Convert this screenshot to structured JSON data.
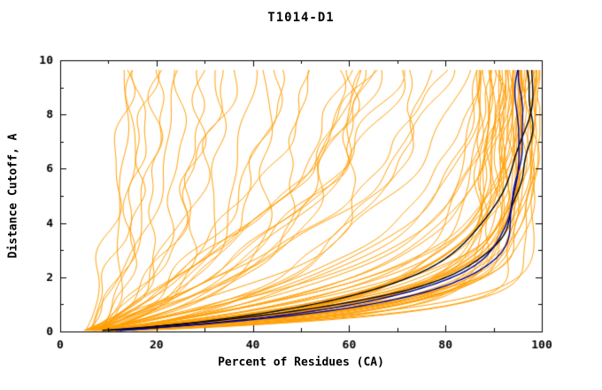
{
  "chart_data": {
    "type": "line",
    "title": "T1014-D1",
    "xlabel": "Percent of Residues (CA)",
    "ylabel": "Distance Cutoff, A",
    "xlim": [
      0,
      100
    ],
    "ylim": [
      0,
      10
    ],
    "x_ticks": [
      0,
      20,
      40,
      60,
      80,
      100
    ],
    "x_minor_step": 10,
    "y_ticks": [
      0,
      2,
      4,
      6,
      8,
      10
    ],
    "y_minor_step": 1,
    "grid": false,
    "legend": "none",
    "colors": {
      "background": "#FFFFFF",
      "axis": "#000000",
      "orange_models": "#FF9E00",
      "blue_highlight": "#00008B",
      "black_highlight": "#000000"
    },
    "curve_model": "x(y) = x0 + (asymptote - x0) * (1 - exp(-(y/tau)^p)) + wiggle; each curve spec is [asymptote_percent, tau, p, wiggle_amp]",
    "x_start_percent": 5,
    "y_draw_range": [
      0.04,
      9.66
    ],
    "orange_curves": [
      [
        86,
        1.45,
        0.95,
        1.2
      ],
      [
        87,
        0.7,
        1.1,
        0.8
      ],
      [
        87.5,
        1.15,
        0.8,
        0.4
      ],
      [
        88,
        0.55,
        0.95,
        1.2
      ],
      [
        88.5,
        1.3,
        1.1,
        0.8
      ],
      [
        89,
        0.85,
        0.8,
        0.4
      ],
      [
        89.5,
        1.45,
        1.1,
        0.8
      ],
      [
        90,
        1.0,
        0.95,
        0.4
      ],
      [
        90.5,
        0.55,
        0.8,
        1.2
      ],
      [
        91,
        1.15,
        1.1,
        0.8
      ],
      [
        91.5,
        0.7,
        0.95,
        0.4
      ],
      [
        92,
        1.3,
        0.8,
        1.2
      ],
      [
        92.5,
        0.85,
        1.1,
        0.8
      ],
      [
        93,
        1.45,
        0.95,
        0.4
      ],
      [
        93.5,
        1.0,
        0.8,
        1.2
      ],
      [
        94,
        0.55,
        1.1,
        0.8
      ],
      [
        94.5,
        1.15,
        0.95,
        0.4
      ],
      [
        95,
        0.7,
        0.8,
        1.2
      ],
      [
        95.5,
        1.3,
        1.1,
        0.4
      ],
      [
        96,
        0.85,
        0.95,
        0.8
      ],
      [
        96.5,
        1.45,
        0.8,
        0.4
      ],
      [
        97,
        1.0,
        1.1,
        1.2
      ],
      [
        97.5,
        0.55,
        0.95,
        0.8
      ],
      [
        98,
        1.15,
        0.8,
        0.4
      ],
      [
        98.5,
        0.7,
        1.1,
        0.8
      ],
      [
        99,
        1.3,
        0.95,
        0.4
      ],
      [
        99.3,
        0.85,
        0.8,
        0.8
      ],
      [
        98.8,
        1.6,
        1.0,
        0.5
      ],
      [
        97.8,
        1.8,
        0.9,
        0.6
      ],
      [
        96.8,
        2.0,
        1.0,
        0.5
      ],
      [
        95.8,
        2.2,
        0.9,
        0.7
      ],
      [
        94.8,
        1.9,
        1.05,
        0.5
      ],
      [
        93.8,
        2.4,
        0.95,
        0.8
      ],
      [
        92.8,
        2.1,
        1.0,
        0.6
      ],
      [
        91.8,
        2.6,
        0.9,
        0.9
      ],
      [
        90.8,
        2.3,
        1.05,
        0.6
      ],
      [
        89.8,
        2.8,
        0.95,
        0.9
      ],
      [
        88.8,
        2.5,
        1.0,
        0.7
      ],
      [
        96.2,
        1.2,
        1.0,
        0.5
      ],
      [
        95.2,
        0.9,
        1.0,
        0.6
      ],
      [
        94.2,
        1.4,
        0.9,
        0.5
      ],
      [
        93.2,
        1.1,
        1.05,
        0.7
      ],
      [
        92.2,
        0.8,
        0.95,
        0.5
      ],
      [
        97.2,
        1.35,
        0.9,
        0.6
      ],
      [
        98.3,
        0.95,
        1.05,
        0.5
      ],
      [
        99.0,
        1.05,
        0.9,
        0.6
      ],
      [
        95,
        5.5,
        1.0,
        1.5
      ],
      [
        92,
        6.5,
        0.9,
        1.8
      ],
      [
        88,
        4.5,
        1.1,
        1.5
      ],
      [
        85,
        7.0,
        1.0,
        2.0
      ],
      [
        90,
        8.0,
        0.95,
        1.5
      ],
      [
        80,
        5.0,
        1.05,
        1.8
      ],
      [
        75,
        6.0,
        0.9,
        1.5
      ],
      [
        97,
        9.0,
        1.0,
        1.2
      ],
      [
        70,
        4.0,
        1.1,
        2.0
      ],
      [
        84,
        3.2,
        0.8,
        1.5
      ],
      [
        78,
        2.6,
        0.85,
        1.8
      ],
      [
        93,
        3.8,
        0.9,
        1.4
      ],
      [
        65,
        3.0,
        1.0,
        1.8
      ],
      [
        72,
        7.5,
        0.95,
        1.5
      ],
      [
        13,
        0.8,
        1.0,
        1.0
      ],
      [
        15,
        1.5,
        0.9,
        1.2
      ],
      [
        17,
        2.5,
        1.0,
        1.5
      ],
      [
        20,
        1.0,
        1.1,
        1.2
      ],
      [
        22,
        3.5,
        0.9,
        1.5
      ],
      [
        25,
        1.8,
        1.0,
        1.2
      ],
      [
        28,
        0.9,
        0.85,
        1.5
      ],
      [
        30,
        2.8,
        1.05,
        1.5
      ],
      [
        33,
        1.3,
        0.95,
        1.2
      ],
      [
        36,
        4.5,
        1.0,
        1.8
      ],
      [
        40,
        2.0,
        0.9,
        1.5
      ],
      [
        43,
        1.1,
        1.1,
        1.2
      ],
      [
        47,
        3.0,
        0.95,
        1.8
      ],
      [
        50,
        1.6,
        1.0,
        1.5
      ],
      [
        54,
        5.0,
        0.9,
        1.8
      ],
      [
        58,
        2.2,
        1.05,
        1.5
      ],
      [
        62,
        1.4,
        0.95,
        1.5
      ],
      [
        66,
        3.6,
        1.0,
        1.8
      ],
      [
        16,
        6.0,
        1.0,
        1.5
      ],
      [
        24,
        7.0,
        0.95,
        1.8
      ],
      [
        34,
        8.0,
        1.0,
        1.5
      ],
      [
        45,
        6.5,
        0.9,
        1.8
      ]
    ],
    "blue_curves": [
      [
        95.0,
        0.95,
        1.0,
        0.5
      ],
      [
        95.8,
        1.1,
        0.95,
        0.5
      ]
    ],
    "black_curves": [
      [
        97.4,
        1.2,
        0.95,
        0.8
      ],
      [
        98.3,
        1.55,
        0.85,
        0.9
      ]
    ]
  }
}
